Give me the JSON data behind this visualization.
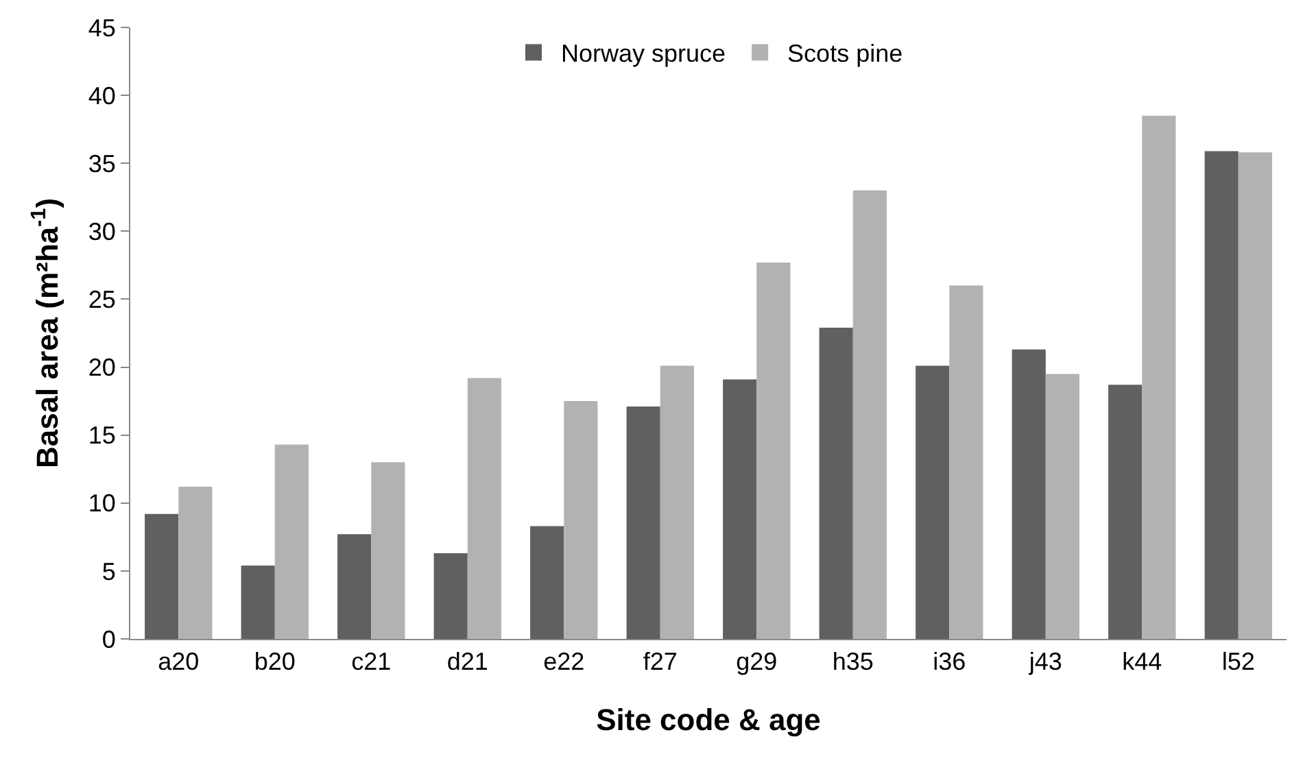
{
  "chart_data": {
    "type": "bar",
    "xlabel": "Site code & age",
    "ylabel": "Basal area (m²ha$^{-1}$)",
    "categories": [
      "a20",
      "b20",
      "c21",
      "d21",
      "e22",
      "f27",
      "g29",
      "h35",
      "i36",
      "j43",
      "k44",
      "l52"
    ],
    "series": [
      {
        "name": "Norway spruce",
        "color": "#606060",
        "values": [
          9.2,
          5.4,
          7.7,
          6.3,
          8.3,
          17.1,
          19.1,
          22.9,
          20.1,
          21.3,
          18.7,
          35.9
        ]
      },
      {
        "name": "Scots pine",
        "color": "#b2b2b2",
        "values": [
          11.2,
          14.3,
          13.0,
          19.2,
          17.5,
          20.1,
          27.7,
          33.0,
          26.0,
          19.5,
          38.5,
          35.8
        ]
      }
    ],
    "ylim": [
      0,
      45
    ],
    "yticks": [
      0,
      5,
      10,
      15,
      20,
      25,
      30,
      35,
      40,
      45
    ],
    "grid": false,
    "legend": "top"
  }
}
